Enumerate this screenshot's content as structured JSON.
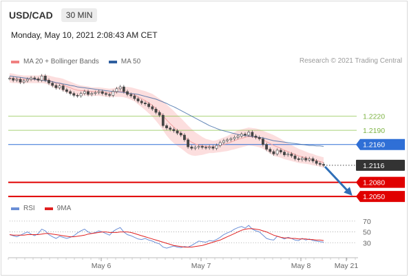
{
  "header": {
    "pair": "USD/CAD",
    "timeframe": "30 MIN"
  },
  "datetime": "Monday, May 10, 2021 2:08:43 AM CET",
  "legend": {
    "ma20": {
      "label": "MA 20 + Bollinger Bands",
      "color": "#f08080"
    },
    "ma50": {
      "label": "MA 50",
      "color": "#2f5f9f"
    },
    "rsi": {
      "label": "RSI",
      "color": "#6a8ed6"
    },
    "ma9": {
      "label": "9MA",
      "color": "#e02020"
    }
  },
  "credit": "Research © 2021 Trading Central",
  "chart_data": {
    "type": "line",
    "x_ticks": [
      "May 6",
      "May 7",
      "May 8",
      "May 21"
    ],
    "price": {
      "ylim": [
        1.204,
        1.232
      ],
      "levels": [
        {
          "value": 1.222,
          "label": "1.2220",
          "kind": "resistance",
          "color": "#8bc34a"
        },
        {
          "value": 1.219,
          "label": "1.2190",
          "kind": "resistance",
          "color": "#8bc34a"
        },
        {
          "value": 1.216,
          "label": "1.2160",
          "kind": "pivot",
          "color": "#2f6fd6"
        },
        {
          "value": 1.2116,
          "label": "1.2116",
          "kind": "last",
          "color": "#333333"
        },
        {
          "value": 1.208,
          "label": "1.2080",
          "kind": "support",
          "color": "#e00000"
        },
        {
          "value": 1.205,
          "label": "1.2050",
          "kind": "support",
          "color": "#e00000"
        }
      ],
      "close": [
        1.23,
        1.2296,
        1.2298,
        1.2292,
        1.2295,
        1.2298,
        1.2301,
        1.2299,
        1.2296,
        1.2305,
        1.2296,
        1.229,
        1.2285,
        1.228,
        1.2284,
        1.2276,
        1.2272,
        1.2268,
        1.2264,
        1.2263,
        1.2268,
        1.2272,
        1.2266,
        1.2268,
        1.227,
        1.2272,
        1.2268,
        1.2266,
        1.2264,
        1.2272,
        1.2278,
        1.2282,
        1.2272,
        1.2266,
        1.2263,
        1.2257,
        1.2252,
        1.2248,
        1.2246,
        1.224,
        1.2235,
        1.2228,
        1.2222,
        1.22,
        1.2195,
        1.2192,
        1.2189,
        1.2184,
        1.218,
        1.217,
        1.2155,
        1.2152,
        1.2154,
        1.2156,
        1.2154,
        1.2153,
        1.2155,
        1.2152,
        1.2158,
        1.2164,
        1.2168,
        1.217,
        1.2172,
        1.2175,
        1.2178,
        1.2182,
        1.218,
        1.2186,
        1.2178,
        1.2175,
        1.2172,
        1.216,
        1.215,
        1.2145,
        1.214,
        1.2148,
        1.2144,
        1.2138,
        1.214,
        1.2136,
        1.213,
        1.2128,
        1.2131,
        1.2127,
        1.213,
        1.2125,
        1.212,
        1.2118,
        1.2116
      ],
      "ma20": [
        1.2301,
        1.23,
        1.2299,
        1.2298,
        1.2298,
        1.2298,
        1.2298,
        1.2298,
        1.2298,
        1.2299,
        1.2298,
        1.2296,
        1.2293,
        1.229,
        1.2289,
        1.2286,
        1.2283,
        1.228,
        1.2277,
        1.2275,
        1.2274,
        1.2274,
        1.2273,
        1.2272,
        1.2272,
        1.2272,
        1.2271,
        1.227,
        1.2269,
        1.227,
        1.2271,
        1.2272,
        1.2271,
        1.227,
        1.2268,
        1.2265,
        1.2261,
        1.2257,
        1.2253,
        1.2248,
        1.2243,
        1.2236,
        1.2229,
        1.2221,
        1.2212,
        1.2204,
        1.2197,
        1.219,
        1.2184,
        1.2177,
        1.217,
        1.2165,
        1.2161,
        1.2159,
        1.2157,
        1.2156,
        1.2156,
        1.2155,
        1.2156,
        1.2158,
        1.216,
        1.2162,
        1.2165,
        1.2168,
        1.2171,
        1.2173,
        1.2175,
        1.2177,
        1.2176,
        1.2175,
        1.2173,
        1.217,
        1.2166,
        1.2162,
        1.2158,
        1.2155,
        1.2152,
        1.2148,
        1.2145,
        1.2142,
        1.2139,
        1.2136,
        1.2134,
        1.2132,
        1.213,
        1.2128,
        1.2126,
        1.2124,
        1.2122
      ],
      "bb_width": [
        0.001,
        0.001,
        0.0009,
        0.0009,
        0.0008,
        0.0008,
        0.0008,
        0.0008,
        0.0008,
        0.0009,
        0.0009,
        0.001,
        0.0011,
        0.0012,
        0.0012,
        0.0013,
        0.0013,
        0.0013,
        0.0013,
        0.0012,
        0.0011,
        0.001,
        0.001,
        0.0009,
        0.0009,
        0.0009,
        0.0009,
        0.0009,
        0.0009,
        0.0009,
        0.001,
        0.0011,
        0.0011,
        0.0012,
        0.0013,
        0.0014,
        0.0016,
        0.0018,
        0.002,
        0.0022,
        0.0024,
        0.0026,
        0.0028,
        0.0031,
        0.0033,
        0.0034,
        0.0034,
        0.0033,
        0.0032,
        0.0031,
        0.003,
        0.0028,
        0.0025,
        0.0022,
        0.0019,
        0.0016,
        0.0014,
        0.0013,
        0.0013,
        0.0014,
        0.0015,
        0.0016,
        0.0017,
        0.0018,
        0.0019,
        0.0019,
        0.0019,
        0.0019,
        0.0019,
        0.0019,
        0.0019,
        0.0019,
        0.002,
        0.0021,
        0.0022,
        0.0021,
        0.002,
        0.0019,
        0.0018,
        0.0017,
        0.0016,
        0.0015,
        0.0014,
        0.0013,
        0.0012,
        0.0012,
        0.0011,
        0.0011,
        0.0011
      ],
      "ma50": [
        1.2305,
        1.2304,
        1.2303,
        1.2302,
        1.2301,
        1.23,
        1.2299,
        1.2298,
        1.2297,
        1.2296,
        1.2295,
        1.2294,
        1.2293,
        1.2291,
        1.229,
        1.2288,
        1.2287,
        1.2285,
        1.2284,
        1.2282,
        1.2281,
        1.228,
        1.2279,
        1.2278,
        1.2277,
        1.2276,
        1.2275,
        1.2274,
        1.2273,
        1.2272,
        1.2272,
        1.2271,
        1.227,
        1.2269,
        1.2268,
        1.2267,
        1.2266,
        1.2264,
        1.2262,
        1.226,
        1.2258,
        1.2256,
        1.2253,
        1.225,
        1.2247,
        1.2243,
        1.224,
        1.2236,
        1.2232,
        1.2228,
        1.2224,
        1.222,
        1.2216,
        1.2212,
        1.2208,
        1.2204,
        1.22,
        1.2197,
        1.2194,
        1.2191,
        1.2189,
        1.2187,
        1.2185,
        1.2183,
        1.2181,
        1.218,
        1.2179,
        1.2178,
        1.2177,
        1.2176,
        1.2175,
        1.2174,
        1.2172,
        1.217,
        1.2168,
        1.2167,
        1.2166,
        1.2165,
        1.2164,
        1.2163,
        1.2162,
        1.2161,
        1.216,
        1.2159,
        1.2158,
        1.2158,
        1.2157,
        1.2157,
        1.2156
      ],
      "forecast": {
        "from": 1.2116,
        "to": 1.205
      }
    },
    "rsi": {
      "ylim": [
        10,
        80
      ],
      "levels": [
        70,
        50,
        30
      ],
      "level_labels": [
        "70",
        "50",
        "30"
      ],
      "rsi": [
        45,
        43,
        41,
        44,
        47,
        50,
        46,
        43,
        47,
        55,
        52,
        45,
        41,
        38,
        42,
        40,
        38,
        40,
        43,
        48,
        52,
        55,
        50,
        47,
        49,
        52,
        50,
        47,
        44,
        51,
        55,
        58,
        50,
        45,
        43,
        40,
        37,
        36,
        38,
        35,
        33,
        30,
        28,
        22,
        20,
        22,
        24,
        22,
        21,
        23,
        22,
        25,
        29,
        33,
        32,
        31,
        34,
        33,
        36,
        40,
        45,
        48,
        51,
        55,
        58,
        60,
        57,
        62,
        55,
        52,
        50,
        44,
        38,
        36,
        35,
        42,
        40,
        37,
        40,
        38,
        35,
        34,
        38,
        35,
        37,
        34,
        33,
        32,
        31
      ],
      "ma9": [
        45,
        44,
        44,
        44,
        44,
        45,
        45,
        45,
        45,
        46,
        47,
        47,
        46,
        45,
        44,
        43,
        42,
        41,
        41,
        42,
        43,
        44,
        46,
        47,
        48,
        49,
        50,
        50,
        49,
        49,
        49,
        50,
        50,
        50,
        49,
        47,
        45,
        43,
        41,
        39,
        37,
        35,
        33,
        31,
        29,
        27,
        25,
        24,
        23,
        22,
        22,
        22,
        23,
        24,
        25,
        27,
        29,
        31,
        33,
        35,
        38,
        41,
        44,
        47,
        50,
        53,
        55,
        56,
        56,
        55,
        54,
        52,
        50,
        47,
        44,
        42,
        40,
        39,
        39,
        38,
        38,
        37,
        37,
        37,
        36,
        36,
        35,
        35,
        34
      ]
    }
  }
}
